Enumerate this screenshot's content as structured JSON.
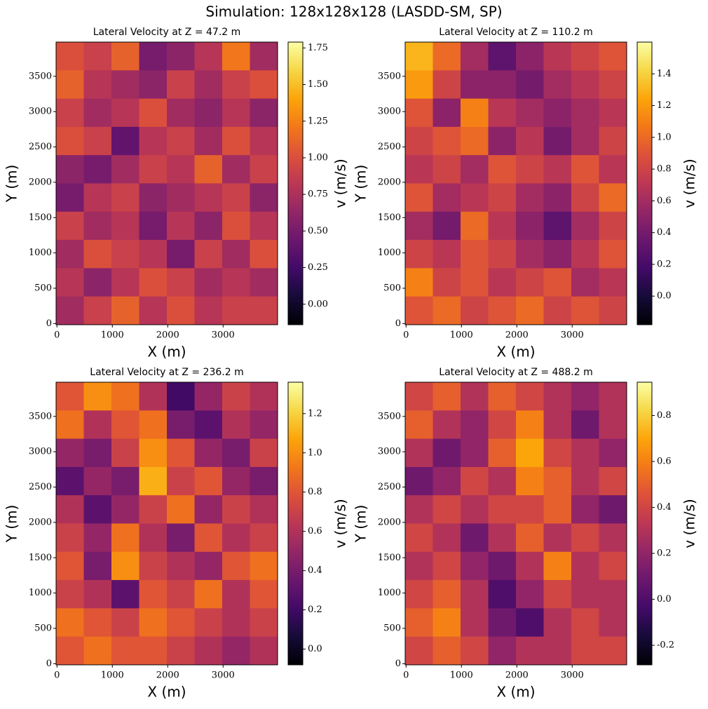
{
  "title": "Simulation: 128x128x128 (LASDD-SM, SP)",
  "chart_data": [
    {
      "type": "heatmap",
      "title": "Lateral Velocity at Z = 47.2 m",
      "xlabel": "X (m)",
      "ylabel": "Y (m)",
      "colorbar_label": "v (m/s)",
      "colormap": "inferno",
      "xlim": [
        -16,
        3984
      ],
      "ylim": [
        -16,
        3984
      ],
      "xticks": [
        0,
        1000,
        2000,
        3000
      ],
      "yticks": [
        0,
        500,
        1000,
        1500,
        2000,
        2500,
        3000,
        3500
      ],
      "clim": [
        -0.14,
        1.79
      ],
      "cticks": [
        {
          "value": 0,
          "label": "0.00"
        },
        0.25,
        {
          "value": 0.5,
          "label": "0.50"
        },
        0.75,
        {
          "value": 1,
          "label": "1.00"
        },
        1.25,
        {
          "value": 1.5,
          "label": "1.50"
        },
        1.75
      ],
      "z": [
        [
          1.0,
          0.9,
          1.1,
          0.5,
          0.6,
          0.8,
          1.2,
          0.7
        ],
        [
          1.1,
          0.8,
          0.7,
          0.6,
          0.9,
          0.7,
          0.9,
          1.0
        ],
        [
          0.9,
          0.7,
          0.8,
          1.0,
          0.7,
          0.6,
          0.8,
          0.6
        ],
        [
          1.0,
          0.9,
          0.4,
          0.8,
          0.9,
          0.7,
          1.0,
          0.8
        ],
        [
          0.6,
          0.5,
          0.7,
          0.9,
          0.8,
          1.1,
          0.7,
          0.9
        ],
        [
          0.5,
          0.8,
          0.9,
          0.6,
          0.7,
          0.8,
          0.9,
          0.6
        ],
        [
          0.9,
          0.7,
          0.8,
          0.5,
          0.8,
          0.6,
          1.0,
          0.8
        ],
        [
          0.7,
          1.0,
          0.9,
          0.8,
          0.5,
          0.9,
          0.7,
          1.0
        ],
        [
          0.8,
          0.6,
          0.8,
          1.0,
          0.9,
          0.7,
          0.8,
          0.7
        ],
        [
          0.7,
          0.9,
          1.1,
          0.8,
          1.0,
          0.8,
          0.9,
          0.9
        ]
      ]
    },
    {
      "type": "heatmap",
      "title": "Lateral Velocity at Z = 110.2 m",
      "xlabel": "X (m)",
      "ylabel": "Y (m)",
      "colorbar_label": "v (m/s)",
      "colormap": "inferno",
      "xlim": [
        -16,
        3984
      ],
      "ylim": [
        -16,
        3984
      ],
      "xticks": [
        0,
        1000,
        2000,
        3000
      ],
      "yticks": [
        0,
        500,
        1000,
        1500,
        2000,
        2500,
        3000,
        3500
      ],
      "clim": [
        -0.18,
        1.6
      ],
      "cticks": [
        {
          "value": 0,
          "label": "0.0"
        },
        0.2,
        0.4,
        0.6,
        0.8,
        {
          "value": 1,
          "label": "1.0"
        },
        1.2,
        1.4
      ],
      "z": [
        [
          1.3,
          1.0,
          0.6,
          0.3,
          0.5,
          0.7,
          0.8,
          0.9
        ],
        [
          1.2,
          0.8,
          0.5,
          0.5,
          0.4,
          0.6,
          0.7,
          0.8
        ],
        [
          0.9,
          0.5,
          1.1,
          0.7,
          0.6,
          0.5,
          0.6,
          0.7
        ],
        [
          0.8,
          0.9,
          1.0,
          0.5,
          0.7,
          0.4,
          0.6,
          0.8
        ],
        [
          0.7,
          0.8,
          0.6,
          0.9,
          0.8,
          0.7,
          0.9,
          0.7
        ],
        [
          0.9,
          0.6,
          0.7,
          0.8,
          0.6,
          0.5,
          0.8,
          1.0
        ],
        [
          0.6,
          0.4,
          1.0,
          0.7,
          0.5,
          0.3,
          0.6,
          0.8
        ],
        [
          0.8,
          0.7,
          0.9,
          0.8,
          0.6,
          0.5,
          0.7,
          0.9
        ],
        [
          1.1,
          0.8,
          0.9,
          0.7,
          0.8,
          0.9,
          0.6,
          0.7
        ],
        [
          0.9,
          1.0,
          0.8,
          0.9,
          1.0,
          0.8,
          0.9,
          0.8
        ]
      ]
    },
    {
      "type": "heatmap",
      "title": "Lateral Velocity at Z = 236.2 m",
      "xlabel": "X (m)",
      "ylabel": "Y (m)",
      "colorbar_label": "v (m/s)",
      "colormap": "inferno",
      "xlim": [
        -16,
        3984
      ],
      "ylim": [
        -16,
        3984
      ],
      "xticks": [
        0,
        1000,
        2000,
        3000
      ],
      "yticks": [
        0,
        500,
        1000,
        1500,
        2000,
        2500,
        3000,
        3500
      ],
      "clim": [
        -0.08,
        1.36
      ],
      "cticks": [
        {
          "value": 0,
          "label": "0.0"
        },
        0.2,
        0.4,
        0.6,
        0.8,
        {
          "value": 1,
          "label": "1.0"
        },
        1.2
      ],
      "z": [
        [
          0.8,
          1.0,
          0.9,
          0.6,
          0.2,
          0.5,
          0.7,
          0.6
        ],
        [
          0.9,
          0.6,
          0.8,
          0.9,
          0.4,
          0.3,
          0.6,
          0.5
        ],
        [
          0.5,
          0.4,
          0.7,
          1.0,
          0.8,
          0.5,
          0.4,
          0.7
        ],
        [
          0.3,
          0.5,
          0.4,
          1.1,
          0.7,
          0.8,
          0.5,
          0.4
        ],
        [
          0.6,
          0.3,
          0.5,
          0.7,
          0.9,
          0.5,
          0.7,
          0.6
        ],
        [
          0.7,
          0.5,
          0.9,
          0.6,
          0.4,
          0.8,
          0.6,
          0.7
        ],
        [
          0.8,
          0.4,
          1.0,
          0.7,
          0.6,
          0.5,
          0.8,
          0.9
        ],
        [
          0.7,
          0.6,
          0.3,
          0.8,
          0.7,
          0.9,
          0.6,
          0.8
        ],
        [
          0.9,
          0.8,
          0.7,
          0.9,
          0.8,
          0.7,
          0.6,
          0.7
        ],
        [
          0.8,
          0.9,
          0.8,
          0.8,
          0.7,
          0.6,
          0.5,
          0.6
        ]
      ]
    },
    {
      "type": "heatmap",
      "title": "Lateral Velocity at Z = 488.2 m",
      "xlabel": "X (m)",
      "ylabel": "Y (m)",
      "colorbar_label": "v (m/s)",
      "colormap": "inferno",
      "xlim": [
        -16,
        3984
      ],
      "ylim": [
        -16,
        3984
      ],
      "xticks": [
        0,
        1000,
        2000,
        3000
      ],
      "yticks": [
        0,
        500,
        1000,
        1500,
        2000,
        2500,
        3000,
        3500
      ],
      "clim": [
        -0.285,
        0.945
      ],
      "cticks": [
        -0.2,
        {
          "value": 0,
          "label": "0.0"
        },
        0.2,
        0.4,
        0.6,
        0.8
      ],
      "z": [
        [
          0.4,
          0.5,
          0.3,
          0.5,
          0.4,
          0.3,
          0.2,
          0.3
        ],
        [
          0.5,
          0.3,
          0.2,
          0.4,
          0.6,
          0.3,
          0.1,
          0.3
        ],
        [
          0.3,
          0.1,
          0.2,
          0.5,
          0.7,
          0.4,
          0.3,
          0.2
        ],
        [
          0.1,
          0.2,
          0.4,
          0.3,
          0.6,
          0.5,
          0.3,
          0.4
        ],
        [
          0.3,
          0.4,
          0.3,
          0.4,
          0.4,
          0.5,
          0.2,
          0.1
        ],
        [
          0.4,
          0.3,
          0.1,
          0.3,
          0.5,
          0.3,
          0.4,
          0.3
        ],
        [
          0.3,
          0.4,
          0.2,
          0.1,
          0.3,
          0.6,
          0.3,
          0.4
        ],
        [
          0.4,
          0.5,
          0.3,
          0.0,
          0.2,
          0.4,
          0.3,
          0.3
        ],
        [
          0.5,
          0.6,
          0.3,
          0.1,
          0.0,
          0.3,
          0.4,
          0.3
        ],
        [
          0.4,
          0.5,
          0.4,
          0.2,
          0.3,
          0.3,
          0.4,
          0.4
        ]
      ]
    }
  ]
}
